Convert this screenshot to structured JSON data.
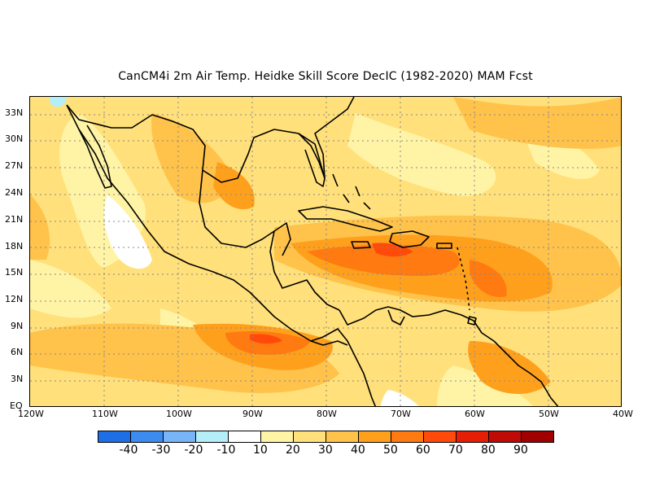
{
  "title": "CanCM4i  2m Air Temp. Heidke Skill Score DecIC (1982-2020) MAM Fcst",
  "map": {
    "lon_range": [
      -120,
      -40
    ],
    "lat_range": [
      0,
      35
    ],
    "lat_ticks": [
      "EQ",
      "3N",
      "6N",
      "9N",
      "12N",
      "15N",
      "18N",
      "21N",
      "24N",
      "27N",
      "30N",
      "33N"
    ],
    "lon_ticks": [
      "120W",
      "110W",
      "100W",
      "90W",
      "80W",
      "70W",
      "60W",
      "50W",
      "40W"
    ],
    "gridlines": true,
    "dominant_field": "positive skill 20-60 over most of domain, 60-70 patches in the Caribbean Sea and eastern Pacific, near zero over northwest Mexico"
  },
  "colorbar": {
    "labels": [
      "-40",
      "-30",
      "-20",
      "-10",
      "10",
      "20",
      "30",
      "40",
      "50",
      "60",
      "70",
      "80",
      "90"
    ],
    "colors": [
      "#1e6ee6",
      "#3c8cf0",
      "#78b4f8",
      "#b4eef8",
      "#ffffff",
      "#fff4a6",
      "#ffe07a",
      "#ffc24a",
      "#ffa01c",
      "#ff7a10",
      "#ff4a0a",
      "#e61e06",
      "#c00a06",
      "#a00000"
    ]
  }
}
